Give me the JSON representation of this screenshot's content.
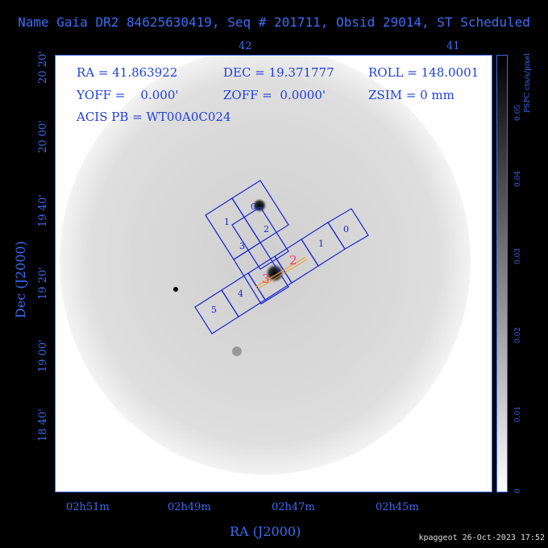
{
  "title": "Name Gaia DR2 84625630419, Seq # 201711, Obsid 29014, ST Scheduled",
  "info": {
    "ra": "RA = 41.863922",
    "dec": "DEC = 19.371777",
    "roll": "ROLL = 148.0001",
    "yoff": "YOFF =    0.000'",
    "zoff": "ZOFF =  0.0000'",
    "zsim": "ZSIM = 0 mm",
    "acis": "ACIS PB = WT00A0C024"
  },
  "axes": {
    "top_ticks": [
      "42",
      "41"
    ],
    "left_ticks": [
      "20 20'",
      "20 00'",
      "19 40'",
      "19 20'",
      "19 00'",
      "18 40'"
    ],
    "bottom_ticks": [
      "02h51m",
      "02h49m",
      "02h47m",
      "02h45m"
    ],
    "xlabel": "RA (J2000)",
    "ylabel": "Dec (J2000)"
  },
  "colorbar": {
    "ticks": [
      "0",
      "0.01",
      "0.02",
      "0.03",
      "0.04",
      "0.05"
    ],
    "label": "PSPC cts/s/pixel"
  },
  "chips": {
    "top_labels": [
      "0",
      "1",
      "2",
      "3"
    ],
    "strip_labels": [
      "0",
      "1",
      "2",
      "3",
      "4",
      "5"
    ],
    "pink_labels": [
      "2",
      "3"
    ]
  },
  "footer": "kpaggeot 26-Oct-2023 17:52",
  "colors": {
    "axis": "#3b6cf5",
    "chip": "#1a28d8",
    "accent": "#ff3366",
    "slit": "#f0a020"
  }
}
